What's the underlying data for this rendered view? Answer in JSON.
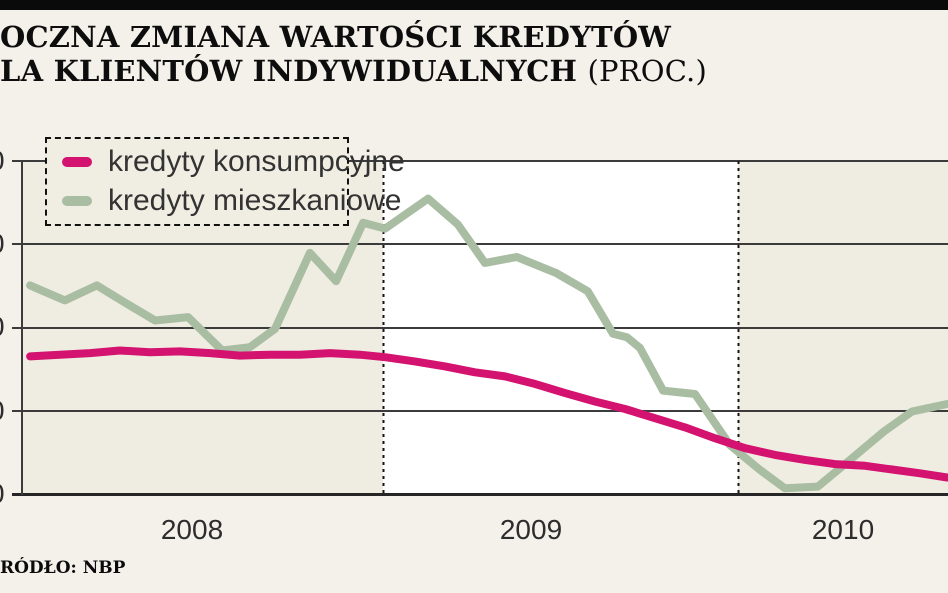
{
  "page": {
    "title_line1": "OCZNA ZMIANA WARTOŚCI KREDYTÓW",
    "title_line2": "LA KLIENTÓW INDYWIDUALNYCH",
    "title_suffix": "(PROC.)",
    "source": "RÓDŁO: NBP"
  },
  "legend": {
    "items": [
      {
        "label": "kredyty konsumpcyjne",
        "color": "#d3136f"
      },
      {
        "label": "kredyty mieszkaniowe",
        "color": "#a9bda3"
      }
    ]
  },
  "axes": {
    "x_labels": [
      "2008",
      "2009",
      "2010"
    ],
    "y_tick_labels_visible": [
      "0",
      "0",
      "0",
      "0",
      "0"
    ],
    "y_values_inferred": [
      40,
      30,
      20,
      10,
      0
    ]
  },
  "chart_data": {
    "type": "line",
    "title": "OCZNA ZMIANA WARTOŚCI KREDYTÓW LA KLIENTÓW INDYWIDUALNYCH (PROC.)",
    "xlabel": "",
    "ylabel": "",
    "x_ticks": [
      "2008",
      "2009",
      "2010"
    ],
    "ylim": [
      0,
      40
    ],
    "y_ticks": [
      0,
      10,
      20,
      30,
      40
    ],
    "grid": true,
    "legend_position": "top-left",
    "x_unit": "decimal_year",
    "y_unit": "percent",
    "series": [
      {
        "name": "kredyty mieszkaniowe",
        "color": "#a9bda3",
        "points": [
          [
            2008.006,
            25.1
          ],
          [
            2008.104,
            23.3
          ],
          [
            2008.194,
            25.1
          ],
          [
            2008.279,
            22.9
          ],
          [
            2008.358,
            20.9
          ],
          [
            2008.451,
            21.3
          ],
          [
            2008.547,
            17.3
          ],
          [
            2008.625,
            17.7
          ],
          [
            2008.696,
            19.9
          ],
          [
            2008.794,
            29.0
          ],
          [
            2008.868,
            25.6
          ],
          [
            2008.944,
            32.6
          ],
          [
            2009.006,
            31.9
          ],
          [
            2009.127,
            35.5
          ],
          [
            2009.211,
            32.4
          ],
          [
            2009.287,
            27.8
          ],
          [
            2009.377,
            28.5
          ],
          [
            2009.487,
            26.6
          ],
          [
            2009.577,
            24.4
          ],
          [
            2009.648,
            19.3
          ],
          [
            2009.687,
            18.9
          ],
          [
            2009.724,
            17.6
          ],
          [
            2009.789,
            12.5
          ],
          [
            2009.879,
            12.1
          ],
          [
            2009.977,
            6.0
          ],
          [
            2010.062,
            3.0
          ],
          [
            2010.132,
            0.8
          ],
          [
            2010.225,
            1.0
          ],
          [
            2010.324,
            4.5
          ],
          [
            2010.411,
            7.6
          ],
          [
            2010.49,
            10.0
          ],
          [
            2010.546,
            10.5
          ],
          [
            2010.589,
            10.9
          ]
        ]
      },
      {
        "name": "kredyty konsumpcyjne",
        "color": "#d3136f",
        "points": [
          [
            2008.006,
            16.6
          ],
          [
            2008.09,
            16.8
          ],
          [
            2008.175,
            17.0
          ],
          [
            2008.259,
            17.3
          ],
          [
            2008.344,
            17.1
          ],
          [
            2008.428,
            17.2
          ],
          [
            2008.513,
            17.0
          ],
          [
            2008.597,
            16.7
          ],
          [
            2008.682,
            16.8
          ],
          [
            2008.766,
            16.8
          ],
          [
            2008.851,
            17.0
          ],
          [
            2008.935,
            16.8
          ],
          [
            2009.006,
            16.5
          ],
          [
            2009.09,
            16.0
          ],
          [
            2009.175,
            15.4
          ],
          [
            2009.259,
            14.7
          ],
          [
            2009.344,
            14.2
          ],
          [
            2009.428,
            13.3
          ],
          [
            2009.513,
            12.2
          ],
          [
            2009.597,
            11.2
          ],
          [
            2009.682,
            10.3
          ],
          [
            2009.766,
            9.2
          ],
          [
            2009.851,
            8.1
          ],
          [
            2009.935,
            6.8
          ],
          [
            2010.02,
            5.6
          ],
          [
            2010.104,
            4.8
          ],
          [
            2010.189,
            4.2
          ],
          [
            2010.273,
            3.7
          ],
          [
            2010.358,
            3.5
          ],
          [
            2010.442,
            3.0
          ],
          [
            2010.513,
            2.6
          ],
          [
            2010.589,
            2.1
          ]
        ]
      }
    ]
  }
}
